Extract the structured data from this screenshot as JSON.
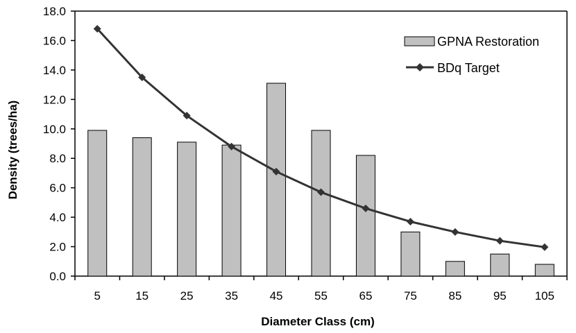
{
  "chart_data": {
    "type": "bar",
    "categories": [
      "5",
      "15",
      "25",
      "35",
      "45",
      "55",
      "65",
      "75",
      "85",
      "95",
      "105"
    ],
    "xlabel": "Diameter Class (cm)",
    "ylabel": "Density (trees/ha)",
    "ylim": [
      0,
      18
    ],
    "yticks": [
      "0.0",
      "2.0",
      "4.0",
      "6.0",
      "8.0",
      "10.0",
      "12.0",
      "14.0",
      "16.0",
      "18.0"
    ],
    "grid": false,
    "legend_position": "top-right",
    "series": [
      {
        "name": "GPNA Restoration",
        "type": "bar",
        "color": "#c0c0c0",
        "values": [
          9.9,
          9.4,
          9.1,
          8.9,
          13.1,
          9.9,
          8.2,
          3.0,
          1.0,
          1.5,
          0.8
        ]
      },
      {
        "name": "BDq Target",
        "type": "line",
        "marker": "diamond",
        "color": "#333333",
        "values": [
          16.8,
          13.5,
          10.9,
          8.8,
          7.1,
          5.7,
          4.6,
          3.7,
          3.0,
          2.4,
          1.97
        ]
      }
    ]
  }
}
